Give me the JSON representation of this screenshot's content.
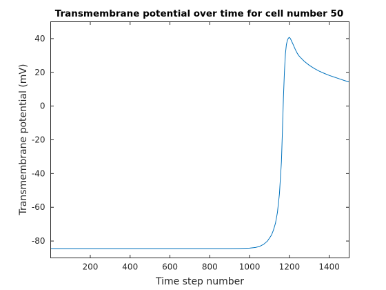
{
  "chart_data": {
    "type": "line",
    "title": "Transmembrane potential over time for cell number 50",
    "xlabel": "Time step number",
    "ylabel": "Transmembrane potential (mV)",
    "xlim": [
      1,
      1500
    ],
    "ylim": [
      -90,
      50
    ],
    "xticks": [
      200,
      400,
      600,
      800,
      1000,
      1200,
      1400
    ],
    "yticks": [
      -80,
      -60,
      -40,
      -20,
      0,
      20,
      40
    ],
    "grid": false,
    "color": "#0072bd",
    "series": [
      {
        "x": [
          1,
          200,
          400,
          600,
          800,
          900,
          950,
          1000,
          1030,
          1050,
          1070,
          1090,
          1110,
          1120,
          1130,
          1140,
          1150,
          1160,
          1165,
          1170,
          1175,
          1180,
          1185,
          1190,
          1195,
          1200,
          1205,
          1210,
          1220,
          1230,
          1240,
          1250,
          1275,
          1300,
          1325,
          1350,
          1375,
          1400,
          1425,
          1450,
          1475,
          1500
        ],
        "y": [
          -84.5,
          -84.5,
          -84.5,
          -84.5,
          -84.5,
          -84.5,
          -84.4,
          -84.2,
          -83.8,
          -83.2,
          -82.0,
          -80.0,
          -76.5,
          -73.5,
          -69.5,
          -63.0,
          -52.0,
          -33.0,
          -15.0,
          5.0,
          20.0,
          31.0,
          36.5,
          39.0,
          40.3,
          40.7,
          40.0,
          38.8,
          36.2,
          33.5,
          31.2,
          29.5,
          26.5,
          24.2,
          22.3,
          20.7,
          19.4,
          18.2,
          17.2,
          16.2,
          15.2,
          14.3
        ]
      }
    ]
  }
}
